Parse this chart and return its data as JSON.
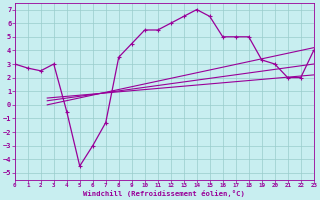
{
  "xlabel": "Windchill (Refroidissement éolien,°C)",
  "background_color": "#c8eef0",
  "line_color": "#990099",
  "grid_color": "#99cccc",
  "xlim": [
    0,
    23
  ],
  "ylim": [
    -5.5,
    7.5
  ],
  "xticks": [
    0,
    1,
    2,
    3,
    4,
    5,
    6,
    7,
    8,
    9,
    10,
    11,
    12,
    13,
    14,
    15,
    16,
    17,
    18,
    19,
    20,
    21,
    22,
    23
  ],
  "yticks": [
    -5,
    -4,
    -3,
    -2,
    -1,
    0,
    1,
    2,
    3,
    4,
    5,
    6,
    7
  ],
  "curve_x": [
    0,
    1,
    2,
    3,
    4,
    5,
    6,
    7,
    8,
    9,
    10,
    11,
    12,
    13,
    14,
    15,
    16,
    17,
    18,
    19,
    20,
    21,
    22,
    23
  ],
  "curve_y": [
    3.0,
    2.7,
    2.5,
    3.0,
    -0.5,
    -4.5,
    -3.0,
    -1.3,
    3.5,
    4.5,
    5.5,
    5.5,
    6.0,
    6.5,
    7.0,
    6.5,
    5.0,
    5.0,
    5.0,
    3.3,
    3.0,
    2.0,
    2.0,
    4.0
  ],
  "line1_x": [
    2.5,
    23
  ],
  "line1_y": [
    0.0,
    4.2
  ],
  "line2_x": [
    2.5,
    23
  ],
  "line2_y": [
    0.3,
    3.0
  ],
  "line3_x": [
    2.5,
    23
  ],
  "line3_y": [
    0.5,
    2.2
  ]
}
